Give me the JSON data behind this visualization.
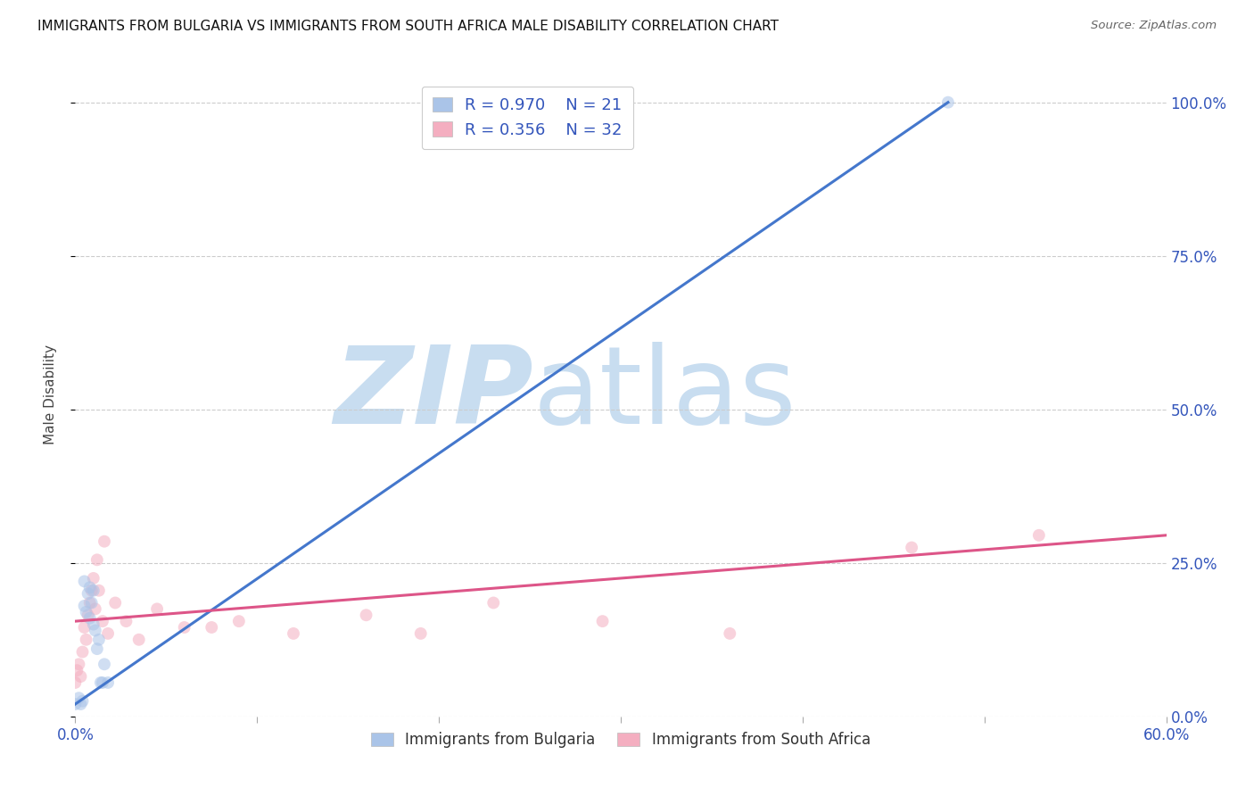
{
  "title": "IMMIGRANTS FROM BULGARIA VS IMMIGRANTS FROM SOUTH AFRICA MALE DISABILITY CORRELATION CHART",
  "source": "Source: ZipAtlas.com",
  "ylabel_label": "Male Disability",
  "x_min": 0.0,
  "x_max": 0.6,
  "y_min": 0.0,
  "y_max": 1.05,
  "x_ticks": [
    0.0,
    0.1,
    0.2,
    0.3,
    0.4,
    0.5,
    0.6
  ],
  "x_tick_labels": [
    "0.0%",
    "",
    "",
    "",
    "",
    "",
    "60.0%"
  ],
  "y_ticks_right": [
    0.0,
    0.25,
    0.5,
    0.75,
    1.0
  ],
  "y_tick_labels_right": [
    "0.0%",
    "25.0%",
    "50.0%",
    "75.0%",
    "100.0%"
  ],
  "grid_color": "#cccccc",
  "background_color": "#ffffff",
  "watermark_zip": "ZIP",
  "watermark_atlas": "atlas",
  "watermark_color": "#c8ddf0",
  "bulgaria_color": "#aac4e8",
  "bulgaria_line_color": "#4477cc",
  "south_africa_color": "#f4aec0",
  "south_africa_line_color": "#dd5588",
  "legend_R_bulgaria": "0.970",
  "legend_N_bulgaria": "21",
  "legend_R_south_africa": "0.356",
  "legend_N_south_africa": "32",
  "legend_text_color": "#3355bb",
  "bulgaria_points_x": [
    0.0,
    0.002,
    0.003,
    0.004,
    0.005,
    0.005,
    0.006,
    0.007,
    0.008,
    0.008,
    0.009,
    0.01,
    0.01,
    0.011,
    0.012,
    0.013,
    0.014,
    0.015,
    0.016,
    0.018,
    0.48
  ],
  "bulgaria_points_y": [
    0.02,
    0.03,
    0.02,
    0.025,
    0.18,
    0.22,
    0.17,
    0.2,
    0.16,
    0.21,
    0.185,
    0.15,
    0.205,
    0.14,
    0.11,
    0.125,
    0.055,
    0.055,
    0.085,
    0.055,
    1.0
  ],
  "south_africa_points_x": [
    0.0,
    0.001,
    0.002,
    0.003,
    0.004,
    0.005,
    0.006,
    0.007,
    0.008,
    0.009,
    0.01,
    0.011,
    0.012,
    0.013,
    0.015,
    0.016,
    0.018,
    0.022,
    0.028,
    0.035,
    0.045,
    0.06,
    0.075,
    0.09,
    0.12,
    0.16,
    0.19,
    0.23,
    0.29,
    0.36,
    0.46,
    0.53
  ],
  "south_africa_points_y": [
    0.055,
    0.075,
    0.085,
    0.065,
    0.105,
    0.145,
    0.125,
    0.165,
    0.185,
    0.205,
    0.225,
    0.175,
    0.255,
    0.205,
    0.155,
    0.285,
    0.135,
    0.185,
    0.155,
    0.125,
    0.175,
    0.145,
    0.145,
    0.155,
    0.135,
    0.165,
    0.135,
    0.185,
    0.155,
    0.135,
    0.275,
    0.295
  ],
  "bulgaria_trendline_x": [
    0.0,
    0.48
  ],
  "bulgaria_trendline_y": [
    0.02,
    1.0
  ],
  "south_africa_trendline_x": [
    0.0,
    0.6
  ],
  "south_africa_trendline_y": [
    0.155,
    0.295
  ],
  "marker_size": 100,
  "marker_alpha": 0.55,
  "line_width": 2.2
}
